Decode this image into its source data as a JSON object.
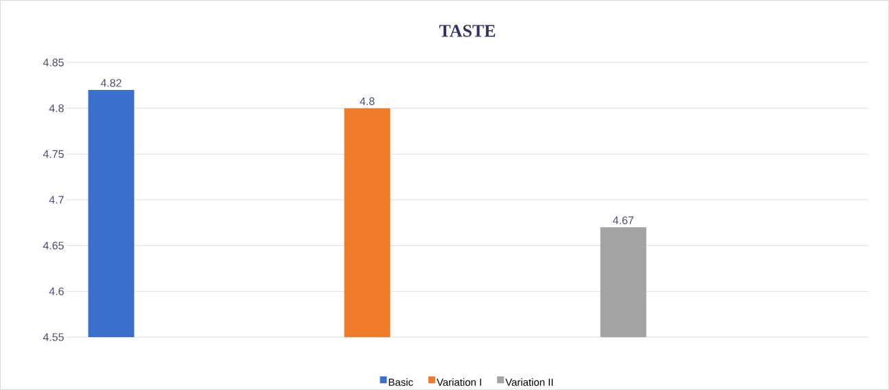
{
  "chart_data": {
    "type": "bar",
    "title": "TASTE",
    "categories": [
      null
    ],
    "series": [
      {
        "name": "Basic",
        "color": "#3b6fcc",
        "values": [
          4.82
        ]
      },
      {
        "name": "Variation I",
        "color": "#ef7b2a",
        "values": [
          4.8
        ]
      },
      {
        "name": "Variation II",
        "color": "#a3a3a3",
        "values": [
          4.67
        ]
      }
    ],
    "ylim": [
      4.55,
      4.85
    ],
    "yticks": [
      4.55,
      4.6,
      4.65,
      4.7,
      4.75,
      4.8,
      4.85
    ],
    "grid": "y",
    "legend": "bottom",
    "data_labels": true
  }
}
